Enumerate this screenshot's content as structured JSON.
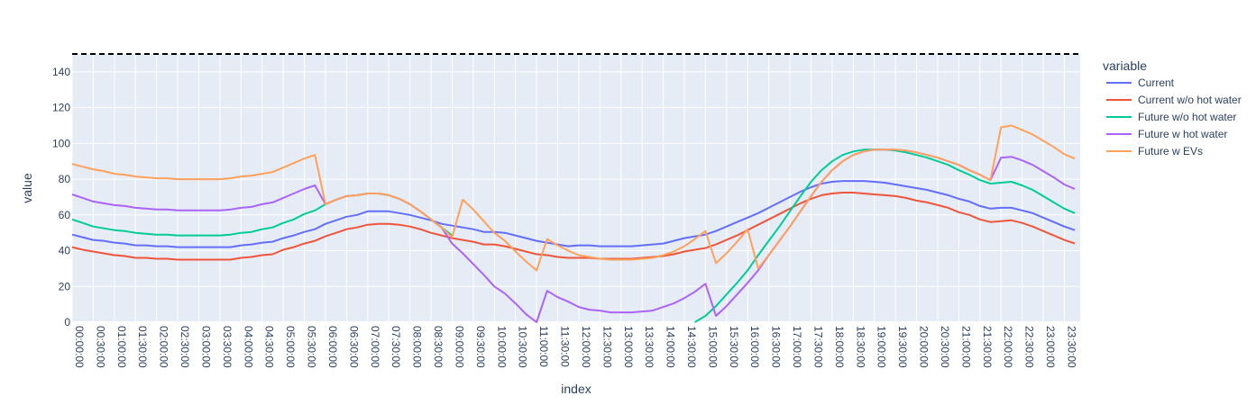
{
  "chart_data": {
    "type": "line",
    "xlabel": "index",
    "ylabel": "value",
    "ylim": [
      0,
      150
    ],
    "yticks": [
      0,
      20,
      40,
      60,
      80,
      100,
      120,
      140
    ],
    "x_tick_labels": [
      "00:00:00",
      "00:30:00",
      "01:00:00",
      "01:30:00",
      "02:00:00",
      "02:30:00",
      "03:00:00",
      "03:30:00",
      "04:00:00",
      "04:30:00",
      "05:00:00",
      "05:30:00",
      "06:00:00",
      "06:30:00",
      "07:00:00",
      "07:30:00",
      "08:00:00",
      "08:30:00",
      "09:00:00",
      "09:30:00",
      "10:00:00",
      "10:30:00",
      "11:00:00",
      "11:30:00",
      "12:00:00",
      "12:30:00",
      "13:00:00",
      "13:30:00",
      "14:00:00",
      "14:30:00",
      "15:00:00",
      "15:30:00",
      "16:00:00",
      "16:30:00",
      "17:00:00",
      "17:30:00",
      "18:00:00",
      "18:30:00",
      "19:00:00",
      "19:30:00",
      "20:00:00",
      "20:30:00",
      "21:00:00",
      "21:30:00",
      "22:00:00",
      "22:30:00",
      "23:00:00",
      "23:30:00"
    ],
    "x_hours": [
      0,
      0.25,
      0.5,
      0.75,
      1,
      1.25,
      1.5,
      1.75,
      2,
      2.25,
      2.5,
      2.75,
      3,
      3.25,
      3.5,
      3.75,
      4,
      4.25,
      4.5,
      4.75,
      5,
      5.25,
      5.5,
      5.75,
      6,
      6.25,
      6.5,
      6.75,
      7,
      7.25,
      7.5,
      7.75,
      8,
      8.25,
      8.5,
      8.75,
      9,
      9.25,
      9.5,
      9.75,
      10,
      10.25,
      10.5,
      10.75,
      11,
      11.25,
      11.5,
      11.75,
      12,
      12.25,
      12.5,
      12.75,
      13,
      13.25,
      13.5,
      13.75,
      14,
      14.25,
      14.5,
      14.75,
      15,
      15.25,
      15.5,
      15.75,
      16,
      16.25,
      16.5,
      16.75,
      17,
      17.25,
      17.5,
      17.75,
      18,
      18.25,
      18.5,
      18.75,
      19,
      19.25,
      19.5,
      19.75,
      20,
      20.25,
      20.5,
      20.75,
      21,
      21.25,
      21.5,
      21.75,
      22,
      22.25,
      22.5,
      22.75,
      23,
      23.25,
      23.5,
      23.75
    ],
    "reference_line": {
      "value": 150,
      "style": "dashed",
      "color": "#000000"
    },
    "legend_title": "variable",
    "legend_position": "right",
    "grid": true,
    "series": [
      {
        "name": "Current",
        "color": "#636efa",
        "values": [
          49,
          47.5,
          46,
          45.5,
          44.5,
          44,
          43,
          43,
          42.5,
          42.5,
          42,
          42,
          42,
          42,
          42,
          42,
          43,
          43.5,
          44.5,
          45,
          47,
          48.5,
          50.5,
          52,
          55,
          57,
          59,
          60,
          62,
          62,
          62,
          61,
          60,
          58.5,
          57,
          55,
          54,
          53,
          52,
          50.5,
          50.5,
          50,
          48.5,
          47,
          45.5,
          44.5,
          43.5,
          42.5,
          43,
          43,
          42.5,
          42.5,
          42.5,
          42.5,
          43,
          43.5,
          44,
          45.5,
          47,
          48,
          49,
          51,
          53.5,
          56,
          58.5,
          61,
          64,
          67,
          70,
          73,
          75.5,
          77.5,
          78.5,
          79,
          79,
          79,
          78.5,
          78,
          77,
          76,
          75,
          74,
          72.5,
          71,
          69,
          67.5,
          65,
          63.5,
          64,
          64,
          62.5,
          61,
          58.5,
          56,
          53.5,
          51.5
        ]
      },
      {
        "name": "Current w/o hot water",
        "color": "#ef553b",
        "values": [
          42,
          40.5,
          39.5,
          38.5,
          37.5,
          37,
          36,
          36,
          35.5,
          35.5,
          35,
          35,
          35,
          35,
          35,
          35,
          36,
          36.5,
          37.5,
          38,
          40.5,
          42,
          44,
          45.5,
          48,
          50,
          52,
          53,
          54.5,
          55,
          55,
          54.5,
          53.5,
          52,
          50,
          48.5,
          47,
          46,
          45,
          43.5,
          43.5,
          42.5,
          41,
          39.5,
          38,
          37.5,
          36.5,
          36,
          36,
          36,
          35.5,
          35.5,
          35.5,
          35.5,
          36,
          36.5,
          37,
          38,
          39.5,
          40.5,
          41.5,
          43.5,
          46,
          48.5,
          51.5,
          54.5,
          57.5,
          60.5,
          63.5,
          66.5,
          69,
          71,
          72,
          72.5,
          72.5,
          72,
          71.5,
          71,
          70.5,
          69.5,
          68,
          67,
          65.5,
          64,
          61.5,
          60,
          57.5,
          56,
          56.5,
          57,
          55.5,
          53.5,
          51,
          48.5,
          46,
          44
        ]
      },
      {
        "name": "Future w/o hot water",
        "color": "#00cc96",
        "values": [
          57.5,
          55.5,
          53.5,
          52.5,
          51.5,
          51,
          50,
          49.5,
          49,
          49,
          48.5,
          48.5,
          48.5,
          48.5,
          48.5,
          49,
          50,
          50.5,
          52,
          53,
          55.5,
          57.5,
          60.5,
          62.5,
          66,
          68.5,
          70.5,
          71,
          72,
          72,
          71,
          69,
          66,
          62,
          57.5,
          53,
          48.5,
          null,
          null,
          null,
          null,
          null,
          null,
          null,
          null,
          null,
          null,
          null,
          null,
          null,
          null,
          null,
          null,
          null,
          null,
          null,
          null,
          null,
          null,
          0,
          3.5,
          9,
          15.5,
          22,
          29,
          37.5,
          45.5,
          53.5,
          62,
          70.5,
          78.5,
          85,
          90,
          93.5,
          95.5,
          96.5,
          96.5,
          96.5,
          96,
          95,
          93.5,
          92,
          90,
          88,
          85,
          82.5,
          79.5,
          77.5,
          78,
          78.5,
          76.5,
          74,
          70.5,
          67,
          63.5,
          61
        ]
      },
      {
        "name": "Future w hot water",
        "color": "#ab63fa",
        "values": [
          71.5,
          69.5,
          67.5,
          66.5,
          65.5,
          65,
          64,
          63.5,
          63,
          63,
          62.5,
          62.5,
          62.5,
          62.5,
          62.5,
          63,
          64,
          64.5,
          66,
          67,
          69.5,
          72,
          74.5,
          76.5,
          66,
          68.5,
          70.5,
          71,
          72,
          72,
          71,
          69,
          66,
          62,
          57.5,
          53,
          44,
          38.5,
          32.5,
          26.5,
          20,
          16,
          10.5,
          4.5,
          0,
          17.5,
          14,
          11.5,
          8.5,
          7,
          6.5,
          5.5,
          5.5,
          5.5,
          6,
          6.5,
          8.5,
          10.5,
          13.5,
          17,
          21.5,
          3.5,
          9,
          15.5,
          22,
          29,
          37.5,
          45.5,
          53.5,
          62,
          70.5,
          78.5,
          85,
          90,
          93.5,
          95.5,
          96.5,
          96.5,
          96.5,
          96,
          95,
          93.5,
          92,
          90,
          88,
          85,
          82.5,
          79.5,
          92,
          92.5,
          90.5,
          88,
          84.5,
          81,
          77,
          74.5
        ]
      },
      {
        "name": "Future w EVs",
        "color": "#ffa15a",
        "values": [
          88.5,
          87,
          85.5,
          84.5,
          83,
          82.5,
          81.5,
          81,
          80.5,
          80.5,
          80,
          80,
          80,
          80,
          80,
          80.5,
          81.5,
          82,
          83,
          84,
          86.5,
          89,
          91.5,
          93.5,
          66,
          68.5,
          70.5,
          71,
          72,
          72,
          71,
          69,
          66,
          62,
          57.5,
          53,
          47.5,
          68.5,
          63,
          56.5,
          50,
          45.5,
          39.5,
          34,
          29,
          46.5,
          43,
          40,
          37.5,
          36.5,
          35.5,
          35,
          35,
          35,
          35.5,
          36,
          37.5,
          39.5,
          42.5,
          46.5,
          51,
          33,
          38.5,
          45,
          52,
          30,
          37.5,
          45.5,
          53.5,
          62,
          70.5,
          78.5,
          85,
          90,
          93.5,
          95.5,
          96.5,
          96.5,
          96.5,
          96,
          95,
          93.5,
          92,
          90,
          88,
          85,
          82.5,
          79.5,
          109,
          110,
          107.5,
          105,
          101.5,
          98,
          94,
          91.5
        ]
      }
    ]
  }
}
